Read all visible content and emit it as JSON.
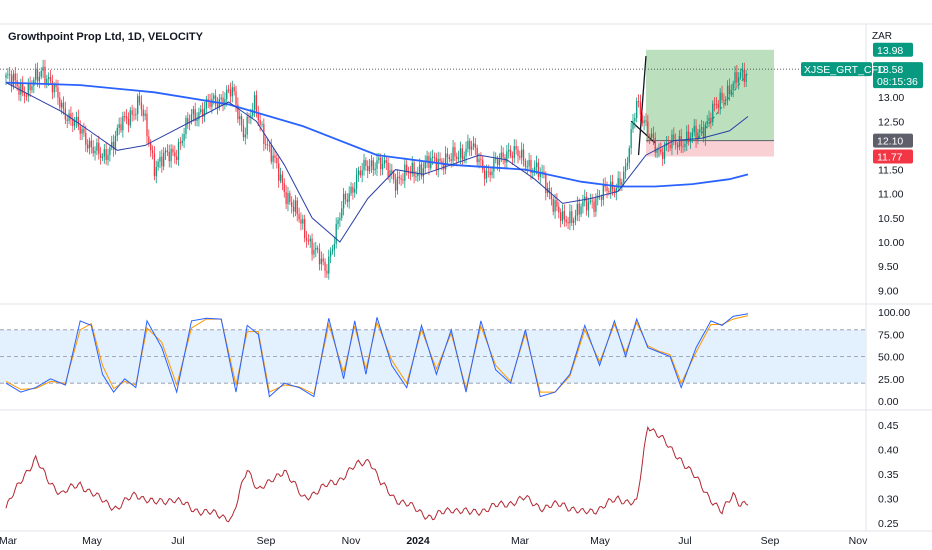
{
  "header": {
    "title": "Growthpoint Prop Ltd, 1D, VELOCITY",
    "currency": "ZAR"
  },
  "colors": {
    "up": "#089981",
    "down": "#f23645",
    "ma_long": "#2962ff",
    "ma_short": "#2a3fa8",
    "stoch_k": "#2962ff",
    "stoch_d": "#ff9800",
    "volatility": "#b22833",
    "target_zone": "#a5d6a7",
    "stop_zone": "#f8c6c9",
    "band_fill": "#e3f0fd"
  },
  "x_axis": {
    "labels": [
      "Mar",
      "May",
      "Jul",
      "Sep",
      "Nov",
      "2024",
      "Mar",
      "May",
      "Jul",
      "Sep",
      "Nov"
    ]
  },
  "chart_data": [
    {
      "type": "candlestick",
      "title": "Growthpoint Prop Ltd, 1D, VELOCITY",
      "symbol": "XJSE_GRT_CFD",
      "ylim": [
        8.8,
        14.1
      ],
      "y_ticks": [
        "13.00",
        "12.50",
        "11.50",
        "11.00",
        "10.50",
        "10.00",
        "9.50",
        "9.00"
      ],
      "price_anchors": {
        "x": [
          0,
          12,
          20,
          30,
          40,
          52,
          62,
          72,
          80,
          92,
          100,
          112,
          122,
          128,
          134,
          142,
          150,
          160,
          172,
          182,
          190,
          200,
          210,
          222,
          232,
          240,
          250,
          260,
          270,
          280,
          290,
          300,
          310,
          318,
          326,
          334,
          340,
          346,
          352,
          358,
          364,
          372,
          378,
          388,
          400
        ],
        "close": [
          13.4,
          13.1,
          13.6,
          12.8,
          12.3,
          11.7,
          12.4,
          12.9,
          11.6,
          11.9,
          12.6,
          12.9,
          13.1,
          12.3,
          12.8,
          11.9,
          11.1,
          10.3,
          9.4,
          10.8,
          11.4,
          11.7,
          11.3,
          11.5,
          11.7,
          11.7,
          12.0,
          11.4,
          11.9,
          11.7,
          11.3,
          10.4,
          10.7,
          10.9,
          11.1,
          11.4,
          13.0,
          12.2,
          11.9,
          12.0,
          12.1,
          12.2,
          12.5,
          13.1,
          13.58
        ]
      },
      "candle_count": 400,
      "ma_long": {
        "x": [
          0,
          40,
          80,
          120,
          160,
          200,
          240,
          280,
          310,
          330,
          350,
          370,
          390,
          400
        ],
        "y": [
          13.3,
          13.25,
          13.1,
          12.85,
          12.4,
          11.8,
          11.6,
          11.5,
          11.25,
          11.15,
          11.15,
          11.2,
          11.3,
          11.4
        ]
      },
      "ma_short": {
        "x": [
          0,
          15,
          30,
          45,
          60,
          75,
          90,
          105,
          120,
          135,
          150,
          165,
          180,
          195,
          210,
          225,
          240,
          255,
          270,
          285,
          300,
          315,
          330,
          345,
          360,
          375,
          390,
          400
        ],
        "y": [
          13.3,
          13.0,
          12.7,
          12.3,
          11.9,
          12.0,
          12.3,
          12.6,
          12.9,
          12.5,
          11.6,
          10.5,
          10.0,
          10.9,
          11.5,
          11.4,
          11.6,
          11.8,
          11.7,
          11.3,
          10.8,
          10.9,
          11.05,
          11.8,
          12.1,
          12.15,
          12.3,
          12.6
        ]
      },
      "position": {
        "target": 13.98,
        "entry": 12.1,
        "stop": 11.77,
        "current": 13.58,
        "countdown": "08:15:36"
      },
      "price_labels": {
        "target": "13.98",
        "entry": "12.10",
        "stop": "11.77",
        "current": "13.58"
      }
    },
    {
      "type": "line",
      "name": "stochastic",
      "ylim": [
        0,
        100
      ],
      "y_ticks": [
        "100.00",
        "75.00",
        "50.00",
        "25.00",
        "0.00"
      ],
      "bands": [
        80,
        50,
        20
      ],
      "k": {
        "x": [
          0,
          8,
          16,
          24,
          32,
          40,
          46,
          52,
          58,
          64,
          70,
          76,
          84,
          92,
          100,
          108,
          116,
          124,
          130,
          136,
          142,
          150,
          158,
          166,
          174,
          182,
          188,
          194,
          200,
          208,
          216,
          224,
          232,
          240,
          248,
          256,
          264,
          272,
          280,
          288,
          296,
          304,
          312,
          320,
          328,
          334,
          340,
          346,
          352,
          358,
          364,
          372,
          380,
          386,
          392,
          400
        ],
        "y": [
          20,
          10,
          15,
          25,
          18,
          90,
          85,
          30,
          10,
          25,
          15,
          90,
          60,
          10,
          90,
          93,
          92,
          10,
          85,
          75,
          5,
          20,
          15,
          5,
          93,
          25,
          90,
          30,
          94,
          40,
          15,
          85,
          30,
          80,
          10,
          90,
          35,
          20,
          80,
          5,
          10,
          30,
          85,
          40,
          90,
          50,
          92,
          60,
          55,
          50,
          15,
          60,
          90,
          85,
          95,
          98
        ]
      },
      "d": {
        "x": [
          0,
          8,
          16,
          24,
          32,
          40,
          46,
          52,
          58,
          64,
          70,
          76,
          84,
          92,
          100,
          108,
          116,
          124,
          130,
          136,
          142,
          150,
          158,
          166,
          174,
          182,
          188,
          194,
          200,
          208,
          216,
          224,
          232,
          240,
          248,
          256,
          264,
          272,
          280,
          288,
          296,
          304,
          312,
          320,
          328,
          334,
          340,
          346,
          352,
          358,
          364,
          372,
          380,
          386,
          392,
          400
        ],
        "y": [
          22,
          13,
          14,
          22,
          20,
          80,
          87,
          40,
          14,
          22,
          18,
          82,
          66,
          18,
          82,
          92,
          92,
          18,
          78,
          78,
          10,
          18,
          16,
          8,
          86,
          32,
          84,
          36,
          88,
          46,
          20,
          80,
          36,
          76,
          14,
          84,
          40,
          22,
          76,
          10,
          10,
          28,
          80,
          44,
          86,
          54,
          88,
          62,
          56,
          52,
          20,
          55,
          86,
          86,
          92,
          96
        ]
      }
    },
    {
      "type": "line",
      "name": "volatility",
      "ylim": [
        0.24,
        0.47
      ],
      "y_ticks": [
        "0.45",
        "0.40",
        "0.35",
        "0.30",
        "0.25"
      ],
      "x": [
        0,
        10,
        16,
        22,
        30,
        40,
        50,
        60,
        70,
        80,
        90,
        100,
        110,
        122,
        130,
        136,
        142,
        150,
        160,
        170,
        180,
        190,
        196,
        202,
        210,
        220,
        230,
        240,
        250,
        260,
        270,
        280,
        290,
        300,
        310,
        320,
        330,
        340,
        346,
        352,
        358,
        364,
        370,
        380,
        386,
        392,
        396,
        400
      ],
      "y": [
        0.28,
        0.35,
        0.38,
        0.34,
        0.31,
        0.33,
        0.3,
        0.28,
        0.31,
        0.29,
        0.3,
        0.28,
        0.27,
        0.26,
        0.36,
        0.32,
        0.33,
        0.36,
        0.3,
        0.32,
        0.34,
        0.37,
        0.38,
        0.33,
        0.3,
        0.28,
        0.26,
        0.28,
        0.27,
        0.28,
        0.29,
        0.3,
        0.28,
        0.29,
        0.27,
        0.28,
        0.3,
        0.29,
        0.45,
        0.43,
        0.4,
        0.38,
        0.35,
        0.3,
        0.27,
        0.31,
        0.29,
        0.29
      ]
    }
  ]
}
